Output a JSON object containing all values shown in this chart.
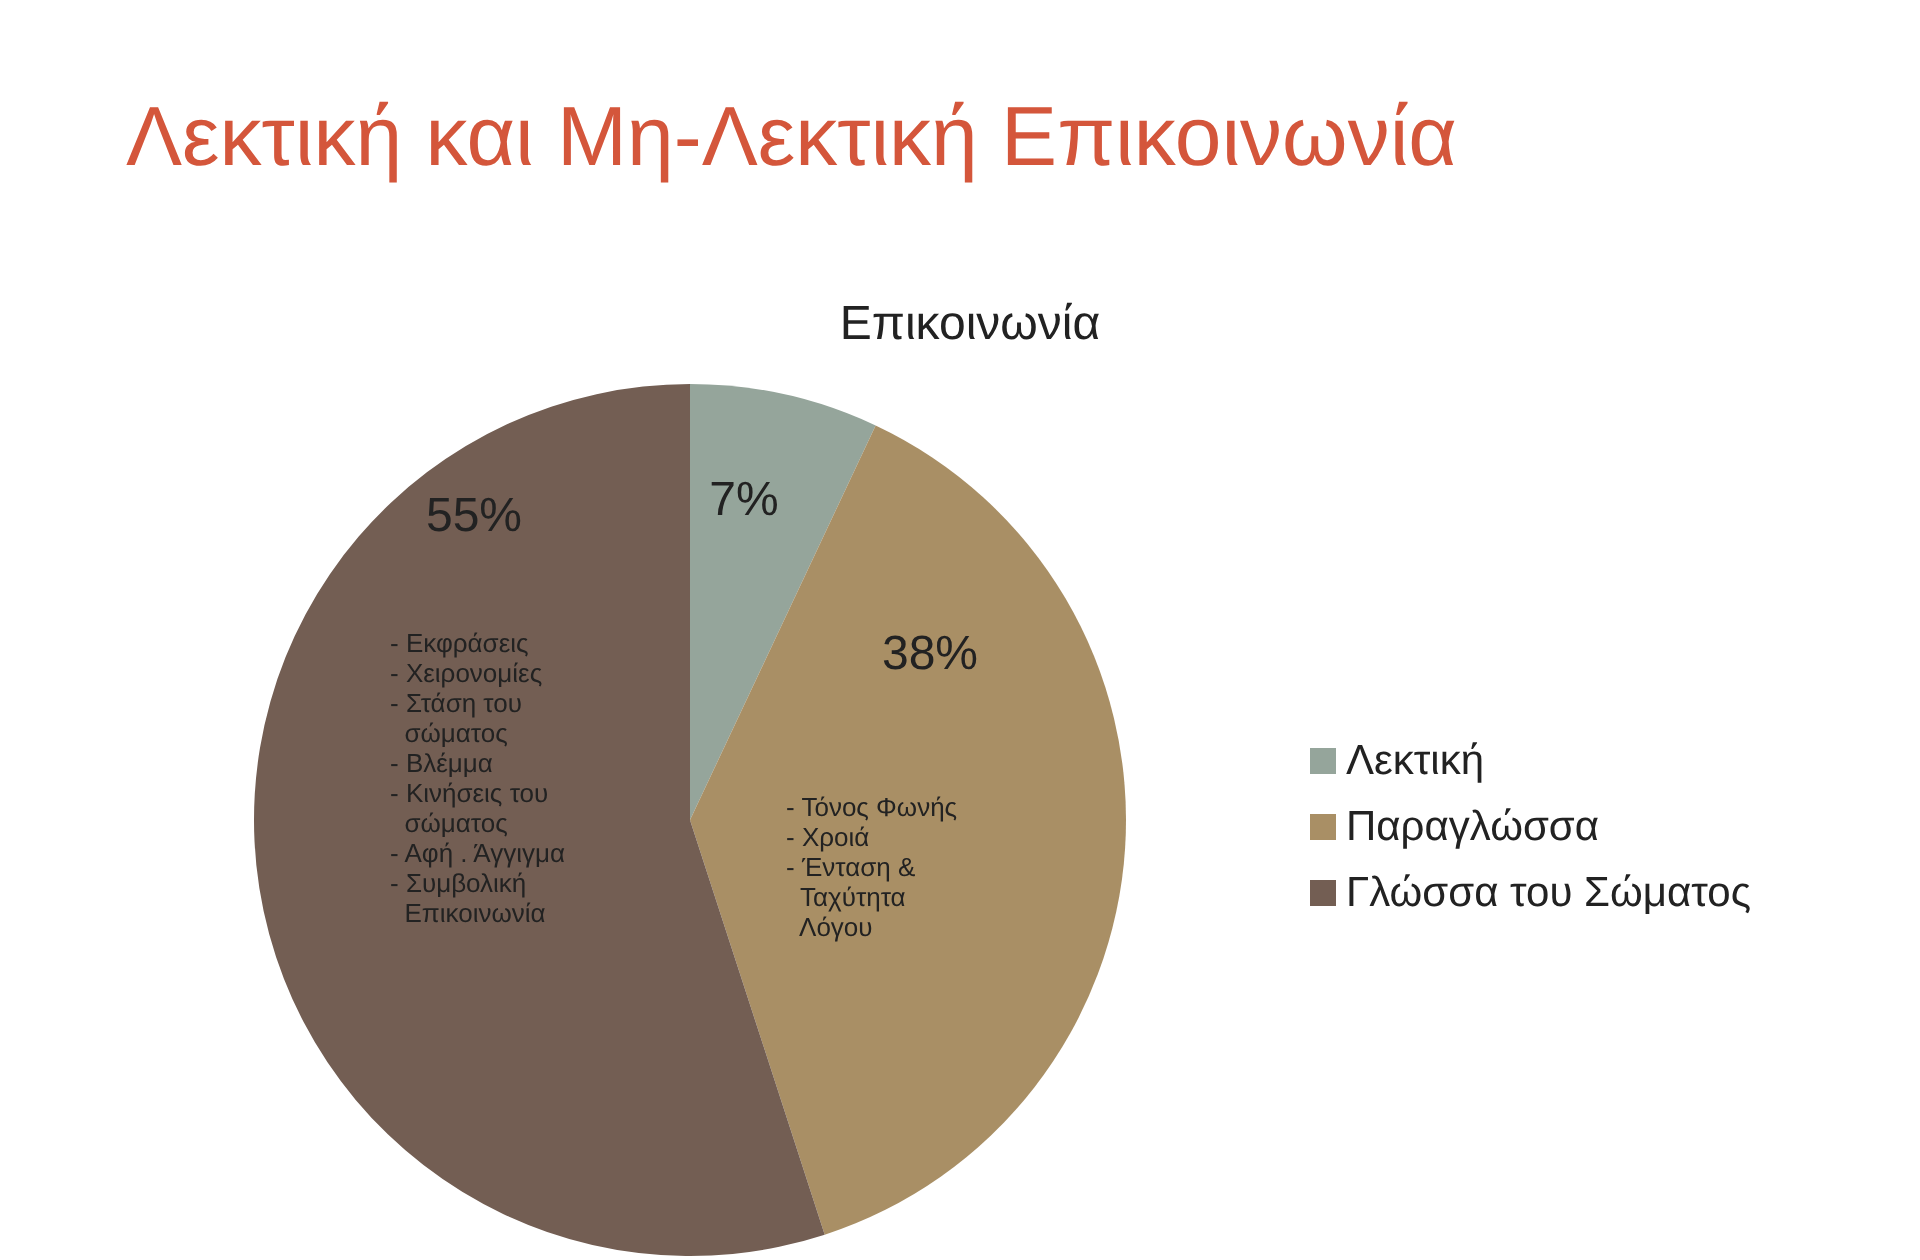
{
  "chart_data": {
    "type": "pie",
    "title": "Λεκτική και Μη-Λεκτική Επικοινωνία",
    "subtitle": "Επικοινωνία",
    "categories": [
      "Λεκτική",
      "Παραγλώσσα",
      "Γλώσσα του Σώματος"
    ],
    "values": [
      7,
      38,
      55
    ],
    "value_labels": [
      "7%",
      "38%",
      "55%"
    ],
    "colors": [
      "#95a59b",
      "#a98f65",
      "#735e53"
    ],
    "legend": "right",
    "annotations": [
      "- Εκφράσεις\n- Χειρονομίες\n- Στάση του\n  σώματος\n- Βλέμμα\n- Κινήσεις του\n  σώματος\n- Αφή . Άγγιγμα\n- Συμβολική\n  Επικοινωνία",
      "- Τόνος Φωνής\n- Χροιά\n- Ένταση &\n  Ταχύτητα\n  Λόγου"
    ]
  }
}
